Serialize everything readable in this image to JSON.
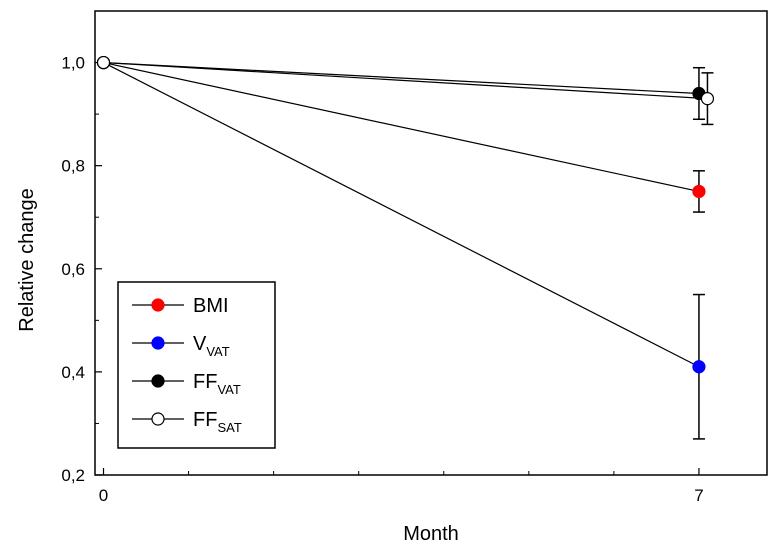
{
  "chart_data": {
    "type": "line",
    "title": "",
    "xlabel": "Month",
    "ylabel": "Relative change",
    "xlim": [
      -0.1,
      7.8
    ],
    "ylim": [
      0.2,
      1.1
    ],
    "x_ticks": [
      0,
      7
    ],
    "x_tick_labels": [
      "0",
      "7"
    ],
    "y_ticks": [
      0.2,
      0.4,
      0.6,
      0.8,
      1.0
    ],
    "y_tick_labels": [
      "0,2",
      "0,4",
      "0,6",
      "0,8",
      "1,0"
    ],
    "grid": false,
    "legend_position": "bottom-left",
    "series": [
      {
        "name": "BMI",
        "label_main": "BMI",
        "label_sub": "",
        "color": "#ff0000",
        "marker_fill": "#ff0000",
        "x": [
          0,
          7
        ],
        "y": [
          1.0,
          0.75
        ],
        "error": [
          0,
          0.04
        ]
      },
      {
        "name": "VVAT",
        "label_main": "V",
        "label_sub": "VAT",
        "color": "#0000ff",
        "marker_fill": "#0000ff",
        "x": [
          0,
          7
        ],
        "y": [
          1.0,
          0.41
        ],
        "error": [
          0,
          0.14
        ]
      },
      {
        "name": "FFVAT",
        "label_main": "FF",
        "label_sub": "VAT",
        "color": "#000000",
        "marker_fill": "#000000",
        "x": [
          0,
          7
        ],
        "y": [
          1.0,
          0.94
        ],
        "error": [
          0,
          0.05
        ]
      },
      {
        "name": "FFSAT",
        "label_main": "FF",
        "label_sub": "SAT",
        "color": "#000000",
        "marker_fill": "#ffffff",
        "x": [
          0,
          7.1
        ],
        "y": [
          1.0,
          0.93
        ],
        "error": [
          0,
          0.05
        ]
      }
    ]
  }
}
